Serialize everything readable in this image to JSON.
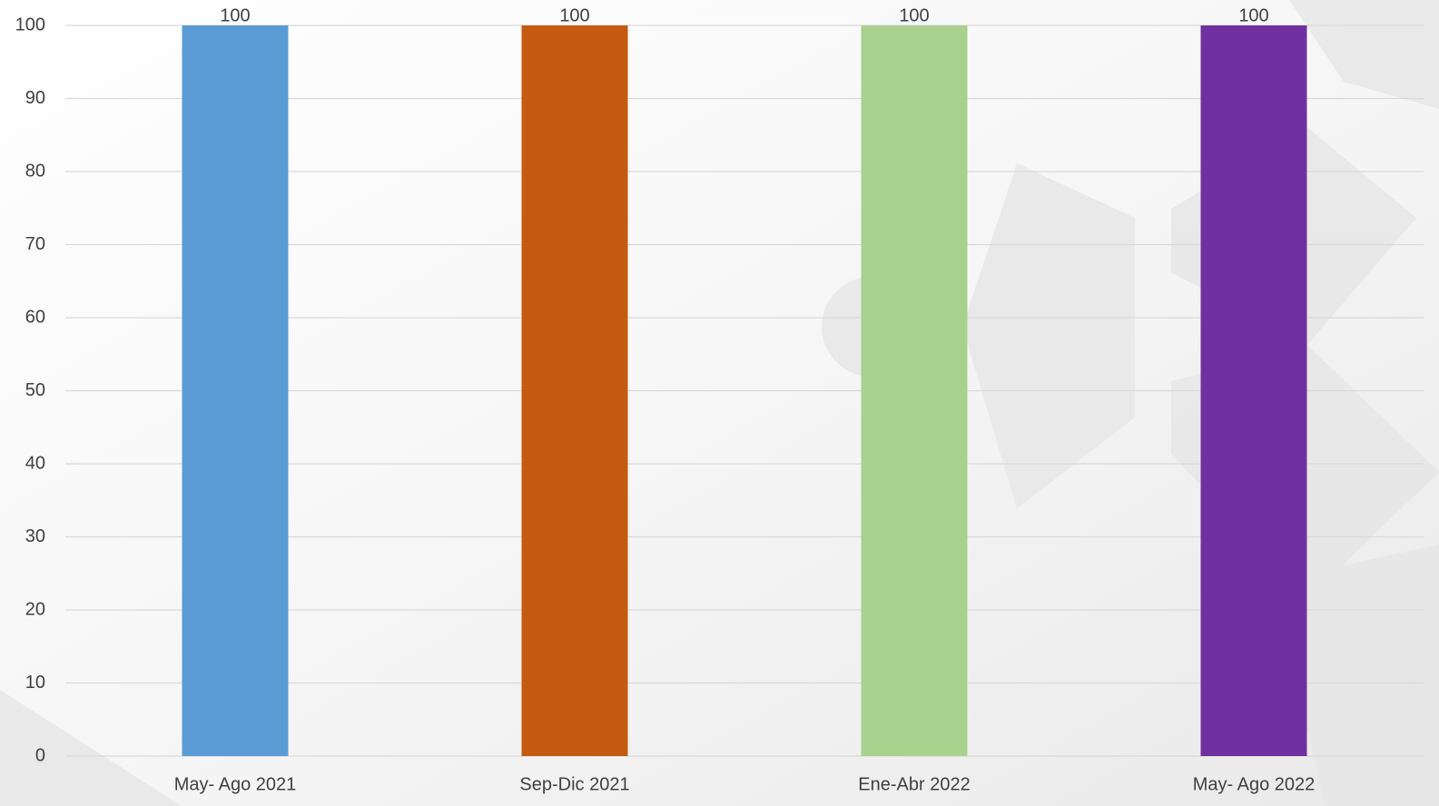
{
  "chart_data": {
    "type": "bar",
    "categories": [
      "May- Ago 2021",
      "Sep-Dic 2021",
      "Ene-Abr 2022",
      "May- Ago 2022"
    ],
    "values": [
      100,
      100,
      100,
      100
    ],
    "colors": [
      "#5b9bd5",
      "#c55a11",
      "#a9d18e",
      "#7030a0"
    ],
    "ylim": [
      0,
      100
    ],
    "yticks": [
      0,
      10,
      20,
      30,
      40,
      50,
      60,
      70,
      80,
      90,
      100
    ],
    "grid": true,
    "data_labels": true
  }
}
